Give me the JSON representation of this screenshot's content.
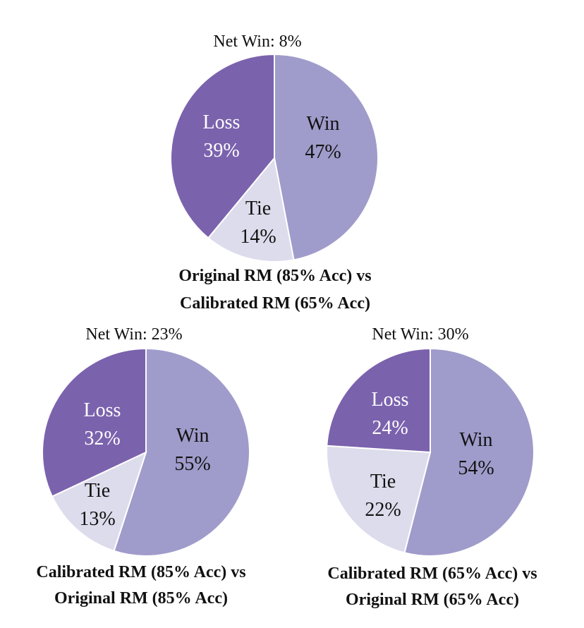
{
  "colors": {
    "win": "#9f9ccb",
    "loss": "#7b62ad",
    "tie": "#dddcec",
    "label_dark": "#111111",
    "label_light": "#ffffff",
    "slice_border": "#ffffff"
  },
  "chart_data": [
    {
      "type": "pie",
      "title": "Net Win: 8%",
      "caption_lines": [
        "Original RM (85% Acc) vs",
        "Calibrated RM (65% Acc)"
      ],
      "slices": [
        {
          "key": "win",
          "label": "Win",
          "value": 47,
          "value_label": "47%"
        },
        {
          "key": "tie",
          "label": "Tie",
          "value": 14,
          "value_label": "14%"
        },
        {
          "key": "loss",
          "label": "Loss",
          "value": 39,
          "value_label": "39%"
        }
      ]
    },
    {
      "type": "pie",
      "title": "Net Win: 23%",
      "caption_lines": [
        "Calibrated RM (85% Acc) vs",
        "Original RM (85% Acc)"
      ],
      "slices": [
        {
          "key": "win",
          "label": "Win",
          "value": 55,
          "value_label": "55%"
        },
        {
          "key": "tie",
          "label": "Tie",
          "value": 13,
          "value_label": "13%"
        },
        {
          "key": "loss",
          "label": "Loss",
          "value": 32,
          "value_label": "32%"
        }
      ]
    },
    {
      "type": "pie",
      "title": "Net Win: 30%",
      "caption_lines": [
        "Calibrated RM (65% Acc) vs",
        "Original RM (65% Acc)"
      ],
      "slices": [
        {
          "key": "win",
          "label": "Win",
          "value": 54,
          "value_label": "54%"
        },
        {
          "key": "tie",
          "label": "Tie",
          "value": 22,
          "value_label": "22%"
        },
        {
          "key": "loss",
          "label": "Loss",
          "value": 24,
          "value_label": "24%"
        }
      ]
    }
  ]
}
